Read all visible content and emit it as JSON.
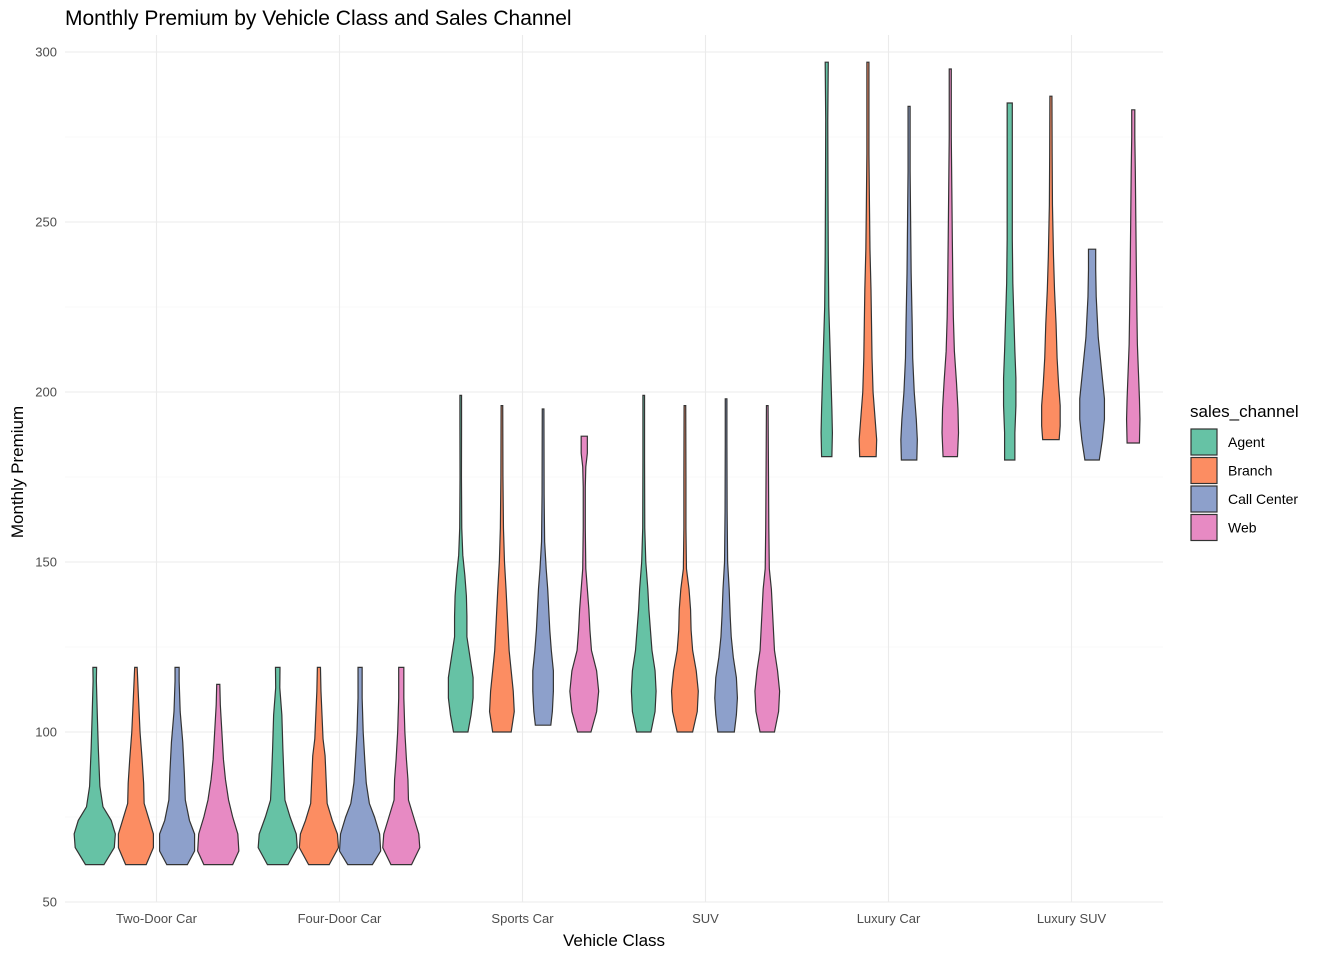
{
  "chart_data": {
    "type": "violin",
    "title": "Monthly Premium by Vehicle Class and Sales Channel",
    "xlabel": "Vehicle Class",
    "ylabel": "Monthly Premium",
    "ylim": [
      50,
      305
    ],
    "yticks": [
      50,
      100,
      150,
      200,
      250,
      300
    ],
    "grid": true,
    "legend_position": "right",
    "legend_title": "sales_channel",
    "categories": [
      "Two-Door Car",
      "Four-Door Car",
      "Sports Car",
      "SUV",
      "Luxury Car",
      "Luxury SUV"
    ],
    "series": [
      {
        "name": "Agent",
        "color": "#66c2a5"
      },
      {
        "name": "Branch",
        "color": "#fc8d62"
      },
      {
        "name": "Call Center",
        "color": "#8da0cb"
      },
      {
        "name": "Web",
        "color": "#e78ac3"
      }
    ],
    "violins": [
      {
        "category": "Two-Door Car",
        "series": "Agent",
        "min": 61,
        "max": 119,
        "profile": [
          [
            61,
            9
          ],
          [
            66,
            19
          ],
          [
            70,
            20
          ],
          [
            74,
            16
          ],
          [
            78,
            8
          ],
          [
            84,
            5
          ],
          [
            95,
            3.5
          ],
          [
            105,
            2.5
          ],
          [
            115,
            1.6
          ],
          [
            119,
            1.8
          ]
        ]
      },
      {
        "category": "Two-Door Car",
        "series": "Branch",
        "min": 61,
        "max": 119,
        "profile": [
          [
            61,
            10
          ],
          [
            66,
            17
          ],
          [
            70,
            17
          ],
          [
            74,
            13
          ],
          [
            79,
            8
          ],
          [
            85,
            7.5
          ],
          [
            92,
            6
          ],
          [
            100,
            4
          ],
          [
            110,
            2.5
          ],
          [
            119,
            1.2
          ]
        ]
      },
      {
        "category": "Two-Door Car",
        "series": "Call Center",
        "min": 61,
        "max": 119,
        "profile": [
          [
            61,
            10
          ],
          [
            65,
            17
          ],
          [
            70,
            17
          ],
          [
            74,
            12
          ],
          [
            80,
            8
          ],
          [
            88,
            7
          ],
          [
            97,
            5.5
          ],
          [
            106,
            3
          ],
          [
            115,
            2
          ],
          [
            119,
            2
          ]
        ]
      },
      {
        "category": "Two-Door Car",
        "series": "Web",
        "min": 61,
        "max": 114,
        "profile": [
          [
            61,
            14
          ],
          [
            65,
            20
          ],
          [
            70,
            19
          ],
          [
            75,
            14
          ],
          [
            80,
            10
          ],
          [
            86,
            7
          ],
          [
            92,
            5
          ],
          [
            100,
            3.5
          ],
          [
            108,
            2
          ],
          [
            114,
            1.5
          ]
        ]
      },
      {
        "category": "Four-Door Car",
        "series": "Agent",
        "min": 61,
        "max": 119,
        "profile": [
          [
            61,
            10
          ],
          [
            66,
            19
          ],
          [
            70,
            18
          ],
          [
            75,
            12
          ],
          [
            80,
            7
          ],
          [
            87,
            6
          ],
          [
            95,
            5
          ],
          [
            105,
            4
          ],
          [
            113,
            2
          ],
          [
            119,
            2.2
          ]
        ]
      },
      {
        "category": "Four-Door Car",
        "series": "Branch",
        "min": 61,
        "max": 119,
        "profile": [
          [
            61,
            10
          ],
          [
            66,
            19
          ],
          [
            70,
            18
          ],
          [
            74,
            13
          ],
          [
            79,
            8
          ],
          [
            86,
            7
          ],
          [
            93,
            6
          ],
          [
            98,
            4
          ],
          [
            105,
            3
          ],
          [
            112,
            2
          ],
          [
            119,
            1.5
          ]
        ]
      },
      {
        "category": "Four-Door Car",
        "series": "Call Center",
        "min": 61,
        "max": 119,
        "profile": [
          [
            61,
            12
          ],
          [
            65,
            20
          ],
          [
            70,
            19
          ],
          [
            75,
            14
          ],
          [
            79,
            9
          ],
          [
            85,
            6
          ],
          [
            92,
            4.5
          ],
          [
            100,
            3
          ],
          [
            110,
            2
          ],
          [
            119,
            2
          ]
        ]
      },
      {
        "category": "Four-Door Car",
        "series": "Web",
        "min": 61,
        "max": 119,
        "profile": [
          [
            61,
            10
          ],
          [
            66,
            18
          ],
          [
            70,
            17
          ],
          [
            75,
            12
          ],
          [
            80,
            7
          ],
          [
            86,
            6.5
          ],
          [
            92,
            5
          ],
          [
            100,
            3.5
          ],
          [
            110,
            2.5
          ],
          [
            119,
            2.5
          ]
        ]
      },
      {
        "category": "Sports Car",
        "series": "Agent",
        "min": 100,
        "max": 199,
        "profile": [
          [
            100,
            7
          ],
          [
            105,
            10
          ],
          [
            110,
            12
          ],
          [
            116,
            12
          ],
          [
            122,
            9
          ],
          [
            128,
            6
          ],
          [
            134,
            6
          ],
          [
            140,
            5.5
          ],
          [
            146,
            4
          ],
          [
            152,
            2
          ],
          [
            160,
            1
          ],
          [
            175,
            0.7
          ],
          [
            190,
            0.8
          ],
          [
            199,
            0.8
          ]
        ]
      },
      {
        "category": "Sports Car",
        "series": "Branch",
        "min": 100,
        "max": 196,
        "profile": [
          [
            100,
            9
          ],
          [
            106,
            12
          ],
          [
            112,
            11
          ],
          [
            118,
            9
          ],
          [
            124,
            7
          ],
          [
            130,
            6
          ],
          [
            136,
            5
          ],
          [
            142,
            4
          ],
          [
            150,
            2.5
          ],
          [
            160,
            1.5
          ],
          [
            175,
            1
          ],
          [
            196,
            0.8
          ]
        ]
      },
      {
        "category": "Sports Car",
        "series": "Call Center",
        "min": 102,
        "max": 195,
        "profile": [
          [
            102,
            7.5
          ],
          [
            106,
            9
          ],
          [
            112,
            10
          ],
          [
            118,
            10
          ],
          [
            124,
            8
          ],
          [
            130,
            6.5
          ],
          [
            136,
            5.5
          ],
          [
            142,
            4.5
          ],
          [
            148,
            3
          ],
          [
            156,
            1.5
          ],
          [
            170,
            1
          ],
          [
            195,
            0.8
          ]
        ]
      },
      {
        "category": "Sports Car",
        "series": "Web",
        "min": 100,
        "max": 187,
        "profile": [
          [
            100,
            6.5
          ],
          [
            106,
            12
          ],
          [
            112,
            14
          ],
          [
            118,
            12
          ],
          [
            124,
            7
          ],
          [
            130,
            5.5
          ],
          [
            136,
            4.5
          ],
          [
            142,
            3
          ],
          [
            148,
            1.5
          ],
          [
            160,
            1
          ],
          [
            172,
            1
          ],
          [
            178,
            1.5
          ],
          [
            182,
            3
          ],
          [
            187,
            3
          ]
        ]
      },
      {
        "category": "SUV",
        "series": "Agent",
        "min": 100,
        "max": 199,
        "profile": [
          [
            100,
            7
          ],
          [
            106,
            11
          ],
          [
            112,
            12
          ],
          [
            118,
            11
          ],
          [
            124,
            8
          ],
          [
            130,
            6.5
          ],
          [
            136,
            5
          ],
          [
            142,
            4
          ],
          [
            150,
            2
          ],
          [
            160,
            1
          ],
          [
            180,
            0.8
          ],
          [
            199,
            0.8
          ]
        ]
      },
      {
        "category": "SUV",
        "series": "Branch",
        "min": 100,
        "max": 196,
        "profile": [
          [
            100,
            7.5
          ],
          [
            106,
            12
          ],
          [
            112,
            13
          ],
          [
            118,
            11
          ],
          [
            124,
            7.5
          ],
          [
            130,
            6
          ],
          [
            136,
            5.5
          ],
          [
            142,
            4
          ],
          [
            148,
            1.5
          ],
          [
            160,
            1
          ],
          [
            175,
            1
          ],
          [
            196,
            0.8
          ]
        ]
      },
      {
        "category": "SUV",
        "series": "Call Center",
        "min": 100,
        "max": 198,
        "profile": [
          [
            100,
            8
          ],
          [
            105,
            10
          ],
          [
            110,
            11
          ],
          [
            116,
            10
          ],
          [
            122,
            7
          ],
          [
            128,
            5
          ],
          [
            134,
            4
          ],
          [
            142,
            3
          ],
          [
            150,
            1.5
          ],
          [
            165,
            1
          ],
          [
            185,
            0.8
          ],
          [
            198,
            0.8
          ]
        ]
      },
      {
        "category": "SUV",
        "series": "Web",
        "min": 100,
        "max": 196,
        "profile": [
          [
            100,
            7
          ],
          [
            106,
            11
          ],
          [
            112,
            12
          ],
          [
            118,
            10
          ],
          [
            124,
            7
          ],
          [
            130,
            6
          ],
          [
            136,
            5
          ],
          [
            142,
            4
          ],
          [
            148,
            2
          ],
          [
            160,
            1.5
          ],
          [
            175,
            1.2
          ],
          [
            185,
            1
          ],
          [
            196,
            0.8
          ]
        ]
      },
      {
        "category": "Luxury Car",
        "series": "Agent",
        "min": 181,
        "max": 297,
        "profile": [
          [
            181,
            5
          ],
          [
            188,
            5.5
          ],
          [
            195,
            5
          ],
          [
            205,
            4
          ],
          [
            215,
            3
          ],
          [
            225,
            2
          ],
          [
            240,
            1.5
          ],
          [
            260,
            1.2
          ],
          [
            280,
            1
          ],
          [
            297,
            1.5
          ]
        ]
      },
      {
        "category": "Luxury Car",
        "series": "Branch",
        "min": 181,
        "max": 297,
        "profile": [
          [
            181,
            8
          ],
          [
            186,
            8.5
          ],
          [
            192,
            7
          ],
          [
            200,
            5
          ],
          [
            210,
            4
          ],
          [
            220,
            3.5
          ],
          [
            230,
            3
          ],
          [
            242,
            2
          ],
          [
            255,
            1.5
          ],
          [
            270,
            1
          ],
          [
            285,
            1
          ],
          [
            297,
            1
          ]
        ]
      },
      {
        "category": "Luxury Car",
        "series": "Call Center",
        "min": 180,
        "max": 284,
        "profile": [
          [
            180,
            7.5
          ],
          [
            186,
            8
          ],
          [
            192,
            7
          ],
          [
            200,
            5
          ],
          [
            210,
            3.5
          ],
          [
            220,
            3
          ],
          [
            235,
            2
          ],
          [
            250,
            1.5
          ],
          [
            265,
            1
          ],
          [
            284,
            1
          ]
        ]
      },
      {
        "category": "Luxury Car",
        "series": "Web",
        "min": 181,
        "max": 295,
        "profile": [
          [
            181,
            7
          ],
          [
            188,
            8
          ],
          [
            195,
            7.5
          ],
          [
            203,
            6
          ],
          [
            212,
            4
          ],
          [
            222,
            3
          ],
          [
            232,
            2.5
          ],
          [
            245,
            2
          ],
          [
            260,
            1.5
          ],
          [
            275,
            1
          ],
          [
            295,
            1
          ]
        ]
      },
      {
        "category": "Luxury SUV",
        "series": "Agent",
        "min": 180,
        "max": 285,
        "profile": [
          [
            180,
            5
          ],
          [
            188,
            5
          ],
          [
            196,
            6
          ],
          [
            204,
            6
          ],
          [
            212,
            5
          ],
          [
            222,
            4
          ],
          [
            232,
            3
          ],
          [
            245,
            2.5
          ],
          [
            260,
            2.5
          ],
          [
            275,
            2.5
          ],
          [
            285,
            2.5
          ]
        ]
      },
      {
        "category": "Luxury SUV",
        "series": "Branch",
        "min": 186,
        "max": 287,
        "profile": [
          [
            186,
            8
          ],
          [
            190,
            9
          ],
          [
            196,
            9
          ],
          [
            202,
            7.5
          ],
          [
            210,
            6
          ],
          [
            220,
            5
          ],
          [
            230,
            3.5
          ],
          [
            240,
            2.5
          ],
          [
            255,
            1.5
          ],
          [
            270,
            1.2
          ],
          [
            287,
            1
          ]
        ]
      },
      {
        "category": "Luxury SUV",
        "series": "Call Center",
        "min": 180,
        "max": 242,
        "profile": [
          [
            180,
            7
          ],
          [
            186,
            10
          ],
          [
            192,
            12
          ],
          [
            198,
            12
          ],
          [
            204,
            10
          ],
          [
            210,
            8
          ],
          [
            216,
            6
          ],
          [
            222,
            5
          ],
          [
            228,
            4
          ],
          [
            236,
            3.5
          ],
          [
            242,
            3.5
          ]
        ]
      },
      {
        "category": "Luxury SUV",
        "series": "Web",
        "min": 185,
        "max": 283,
        "profile": [
          [
            185,
            6
          ],
          [
            192,
            6.5
          ],
          [
            198,
            6
          ],
          [
            206,
            5
          ],
          [
            214,
            4
          ],
          [
            224,
            3.5
          ],
          [
            236,
            3
          ],
          [
            250,
            2.5
          ],
          [
            265,
            2
          ],
          [
            275,
            1.5
          ],
          [
            283,
            1.5
          ]
        ]
      }
    ]
  }
}
